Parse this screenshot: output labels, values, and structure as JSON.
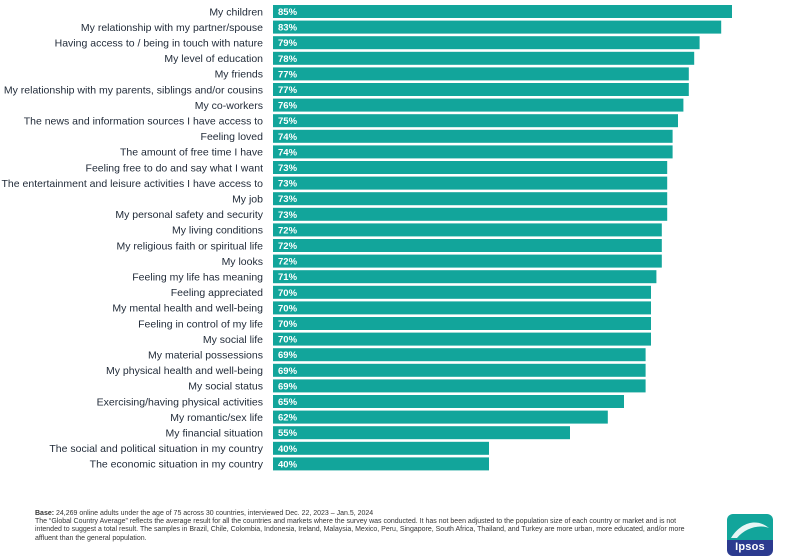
{
  "chart_data": {
    "type": "bar",
    "orientation": "horizontal",
    "categories": [
      "My children",
      "My relationship with my partner/spouse",
      "Having access to / being in touch with nature",
      "My level of education",
      "My friends",
      "My relationship with my parents, siblings and/or cousins",
      "My co-workers",
      "The news and information sources I have access to",
      "Feeling loved",
      "The amount of free time I have",
      "Feeling free to do and say what I want",
      "The entertainment and leisure activities I have access to",
      "My job",
      "My personal safety and security",
      "My living conditions",
      "My religious faith or spiritual life",
      "My looks",
      "Feeling my life has meaning",
      "Feeling appreciated",
      "My mental health and well-being",
      "Feeling in control of my life",
      "My social life",
      "My material possessions",
      "My physical health and well-being",
      "My social status",
      "Exercising/having physical activities",
      "My romantic/sex life",
      "My financial situation",
      "The social and political situation in my country",
      "The economic situation in my country"
    ],
    "values": [
      85,
      83,
      79,
      78,
      77,
      77,
      76,
      75,
      74,
      74,
      73,
      73,
      73,
      73,
      72,
      72,
      72,
      71,
      70,
      70,
      70,
      70,
      69,
      69,
      69,
      65,
      62,
      55,
      40,
      40
    ],
    "value_labels": [
      "85%",
      "83%",
      "79%",
      "78%",
      "77%",
      "77%",
      "76%",
      "75%",
      "74%",
      "74%",
      "73%",
      "73%",
      "73%",
      "73%",
      "72%",
      "72%",
      "72%",
      "71%",
      "70%",
      "70%",
      "70%",
      "70%",
      "69%",
      "69%",
      "69%",
      "65%",
      "62%",
      "55%",
      "40%",
      "40%"
    ],
    "xlim": [
      0,
      100
    ],
    "grid": false,
    "legend": "none",
    "bar_color": "#12a59b"
  },
  "footnote": {
    "lead": "Base:",
    "line1": " 24,269 online adults under the age of 75 across 30 countries, interviewed Dec. 22, 2023 – Jan.5, 2024",
    "line2": "The “Global Country Average” reflects the average result for all the countries and markets where the survey was conducted. It has not been adjusted to the population size of each country or market and is not intended to suggest a total result.   The samples in Brazil, Chile, Colombia, Indonesia, Ireland, Malaysia, Mexico, Peru, Singapore, South Africa, Thailand, and Turkey are more urban, more educated, and/or more affluent than the general population."
  },
  "logo": {
    "text": "Ipsos",
    "colors": {
      "top": "#12a59b",
      "bottom": "#2b3a8f"
    }
  }
}
